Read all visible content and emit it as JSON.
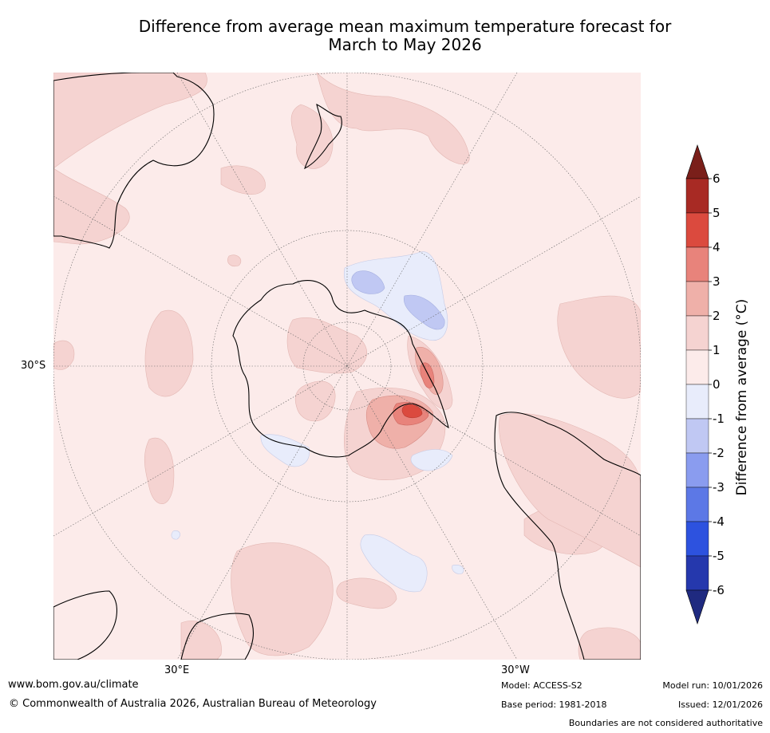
{
  "title": {
    "line1": "Difference from average mean maximum temperature forecast for",
    "line2": "March to May 2026"
  },
  "map": {
    "projection": "south-polar stereographic",
    "graticule_labels": {
      "latitude": "30°S",
      "lon_left": "30°E",
      "lon_right": "30°W"
    }
  },
  "colorbar": {
    "label": "Difference from average (°C)",
    "ticks": [
      "6",
      "5",
      "4",
      "3",
      "2",
      "1",
      "0",
      "-1",
      "-2",
      "-3",
      "-4",
      "-5",
      "-6"
    ],
    "bins": [
      {
        "range": "5 to 6",
        "color": "#a82a24"
      },
      {
        "range": "4 to 5",
        "color": "#db4a3e"
      },
      {
        "range": "3 to 4",
        "color": "#e8837b"
      },
      {
        "range": "2 to 3",
        "color": "#efb0a9"
      },
      {
        "range": "1 to 2",
        "color": "#f5d3d1"
      },
      {
        "range": "0 to 1",
        "color": "#fcebea"
      },
      {
        "range": "-1 to 0",
        "color": "#e8ecfb"
      },
      {
        "range": "-2 to -1",
        "color": "#c0c8f3"
      },
      {
        "range": "-3 to -2",
        "color": "#8a9cef"
      },
      {
        "range": "-4 to -3",
        "color": "#5c78e6"
      },
      {
        "range": "-5 to -4",
        "color": "#2d52df"
      },
      {
        "range": "-6 to -5",
        "color": "#2538ad"
      }
    ],
    "over_color": "#7a1f1a",
    "under_color": "#1f2a80"
  },
  "footer": {
    "website": "www.bom.gov.au/climate",
    "copyright": "© Commonwealth of Australia 2026, Australian Bureau of Meteorology",
    "model": "Model: ACCESS-S2",
    "base_period": "Base period: 1981-2018",
    "model_run": "Model run: 10/01/2026",
    "issued": "Issued: 12/01/2026",
    "disclaimer": "Boundaries are not considered authoritative"
  }
}
